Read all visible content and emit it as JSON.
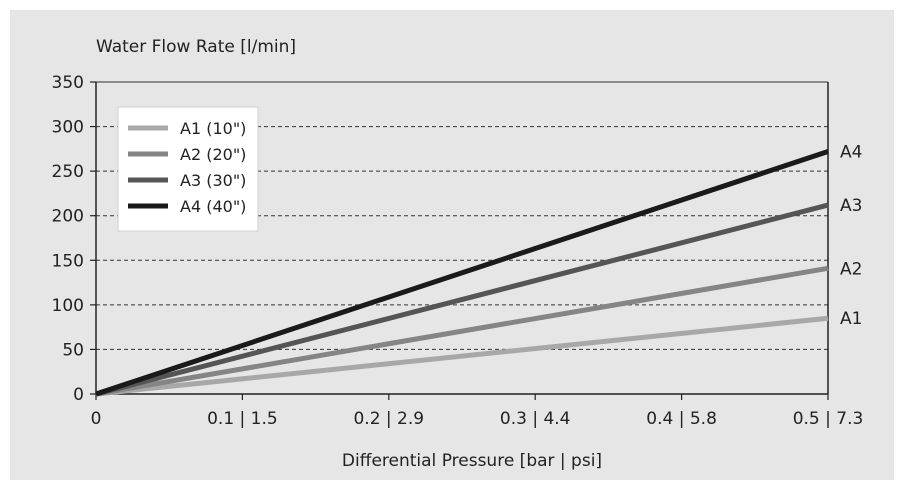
{
  "chart_data": {
    "type": "line",
    "title": "",
    "ylabel": "Water Flow Rate [l/min]",
    "xlabel": "Differential Pressure [bar | psi]",
    "x_tick_labels": [
      {
        "x": 0,
        "label": "0"
      },
      {
        "x": 0.1,
        "label": "0.1 | 1.5"
      },
      {
        "x": 0.2,
        "label": "0.2 | 2.9"
      },
      {
        "x": 0.3,
        "label": "0.3 | 4.4"
      },
      {
        "x": 0.4,
        "label": "0.4 | 5.8"
      },
      {
        "x": 0.5,
        "label": "0.5 | 7.3"
      }
    ],
    "y_ticks": [
      0,
      50,
      100,
      150,
      200,
      250,
      300,
      350
    ],
    "xlim": [
      0,
      0.5
    ],
    "ylim": [
      0,
      350
    ],
    "grid": "horizontal-dashed",
    "legend_position": "top-left",
    "series": [
      {
        "name": "A1 (10\")",
        "end_label": "A1",
        "x": [
          0,
          0.5
        ],
        "values": [
          0,
          85
        ],
        "color": "#a8a8a8"
      },
      {
        "name": "A2 (20\")",
        "end_label": "A2",
        "x": [
          0,
          0.5
        ],
        "values": [
          0,
          141
        ],
        "color": "#858585"
      },
      {
        "name": "A3 (30\")",
        "end_label": "A3",
        "x": [
          0,
          0.5
        ],
        "values": [
          0,
          212
        ],
        "color": "#555555"
      },
      {
        "name": "A4 (40\")",
        "end_label": "A4",
        "x": [
          0,
          0.5
        ],
        "values": [
          0,
          272
        ],
        "color": "#1a1a1a"
      }
    ]
  }
}
